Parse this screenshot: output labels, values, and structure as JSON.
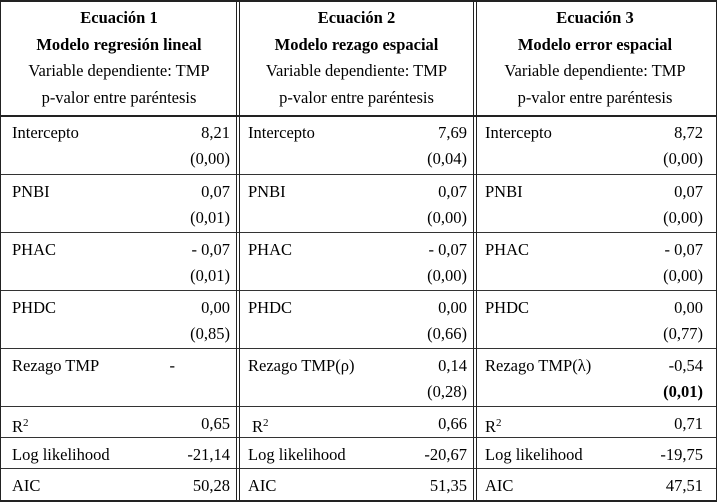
{
  "columns": [
    {
      "title": "Ecuación 1",
      "model": "Modelo regresión lineal",
      "dependent": "Variable dependiente: TMP",
      "note": "p-valor entre paréntesis"
    },
    {
      "title": "Ecuación 2",
      "model": "Modelo rezago espacial",
      "dependent": "Variable dependiente: TMP",
      "note": "p-valor entre paréntesis"
    },
    {
      "title": "Ecuación 3",
      "model": "Modelo error espacial",
      "dependent": "Variable dependiente: TMP",
      "note": "p-valor entre paréntesis"
    }
  ],
  "rows": [
    {
      "labels": [
        "Intercepto",
        "Intercepto",
        "Intercepto"
      ],
      "values": [
        "8,21",
        "7,69",
        "8,72"
      ],
      "pvalues": [
        "(0,00)",
        "(0,04)",
        "(0,00)"
      ]
    },
    {
      "labels": [
        "PNBI",
        "PNBI",
        "PNBI"
      ],
      "values": [
        "0,07",
        "0,07",
        "0,07"
      ],
      "pvalues": [
        "(0,01)",
        "(0,00)",
        "(0,00)"
      ]
    },
    {
      "labels": [
        "PHAC",
        "PHAC",
        "PHAC"
      ],
      "values": [
        "- 0,07",
        "- 0,07",
        "- 0,07"
      ],
      "pvalues": [
        "(0,01)",
        "(0,00)",
        "(0,00)"
      ]
    },
    {
      "labels": [
        "PHDC",
        "PHDC",
        "PHDC"
      ],
      "values": [
        "0,00",
        "0,00",
        "0,00"
      ],
      "pvalues": [
        "(0,85)",
        "(0,66)",
        "(0,77)"
      ]
    },
    {
      "labels": [
        "Rezago TMP",
        "Rezago TMP(ρ)",
        "Rezago TMP(λ)"
      ],
      "values": [
        "-",
        "0,14",
        "-0,54"
      ],
      "pvalues": [
        "",
        "(0,28)",
        "(0,01)"
      ]
    }
  ],
  "r2": {
    "label_base": "R",
    "label_sup": "2",
    "values": [
      "0,65",
      "0,66",
      "0,71"
    ]
  },
  "loglik": {
    "label": "Log likelihood",
    "values": [
      "-21,14",
      "-20,67",
      "-19,75"
    ]
  },
  "aic": {
    "label": "AIC",
    "values": [
      "50,28",
      "51,35",
      "47,51"
    ]
  }
}
